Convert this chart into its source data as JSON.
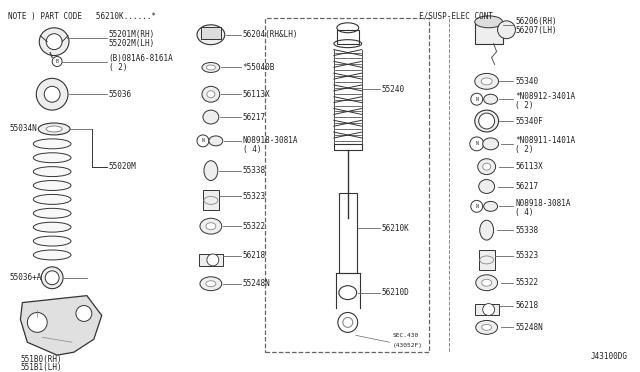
{
  "bg_color": "#ffffff",
  "title_note": "NOTE ) PART CODE   56210K......*",
  "footer_code": "J43100DG",
  "right_header": "F/SUSP-ELEC CONT",
  "font_size": 5.5,
  "label_color": "#222222",
  "line_color": "#666666",
  "draw_color": "#333333"
}
